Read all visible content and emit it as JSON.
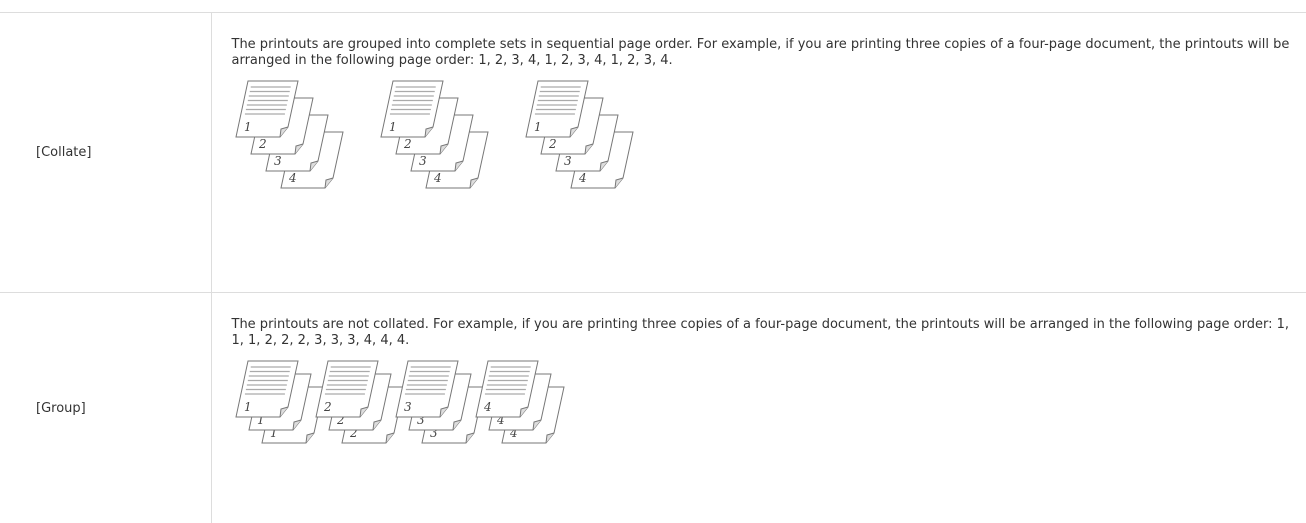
{
  "table": {
    "rows": [
      {
        "label": "[Collate]",
        "description": "The printouts are grouped into complete sets in sequential page order. For example, if you are printing three copies of a four-page document, the printouts will be arranged in the following page order: 1, 2, 3, 4, 1, 2, 3, 4, 1, 2, 3, 4.",
        "illustration": [
          [
            "1",
            "2",
            "3",
            "4"
          ],
          [
            "1",
            "2",
            "3",
            "4"
          ],
          [
            "1",
            "2",
            "3",
            "4"
          ]
        ]
      },
      {
        "label": "[Group]",
        "description": "The printouts are not collated. For example, if you are printing three copies of a four-page document, the printouts will be arranged in the following page order: 1, 1, 1, 2, 2, 2, 3, 3, 3, 4, 4, 4.",
        "illustration": [
          [
            "1",
            "1",
            "1"
          ],
          [
            "2",
            "2",
            "2"
          ],
          [
            "3",
            "3",
            "3"
          ],
          [
            "4",
            "4",
            "4"
          ]
        ]
      }
    ]
  }
}
